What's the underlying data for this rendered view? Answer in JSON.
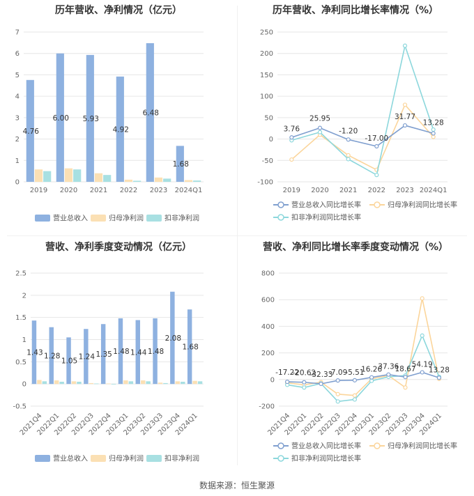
{
  "source_text": "数据来源：恒生聚源",
  "chart_data": [
    {
      "type": "bar",
      "title": "历年营收、净利情况（亿元）",
      "categories": [
        "2019",
        "2020",
        "2021",
        "2022",
        "2023",
        "2024Q1"
      ],
      "ylim": [
        0,
        7
      ],
      "yticks": [
        0,
        1,
        2,
        3,
        4,
        5,
        6,
        7
      ],
      "series": [
        {
          "name": "营业总收入",
          "color": "#8eb1e0",
          "values": [
            4.76,
            6.0,
            5.93,
            4.92,
            6.48,
            1.68
          ]
        },
        {
          "name": "归母净利润",
          "color": "#fbe0b4",
          "values": [
            0.58,
            0.63,
            0.4,
            0.1,
            0.2,
            0.08
          ]
        },
        {
          "name": "扣非净利润",
          "color": "#a8e0e2",
          "values": [
            0.5,
            0.58,
            0.32,
            0.05,
            0.15,
            0.06
          ]
        }
      ],
      "data_labels": [
        "4.76",
        "6.00",
        "5.93",
        "4.92",
        "6.48",
        "1.68"
      ],
      "legend_position": "bottom"
    },
    {
      "type": "line",
      "title": "历年营收、净利同比增长率情况（%）",
      "categories": [
        "2019",
        "2020",
        "2021",
        "2022",
        "2023",
        "2024Q1"
      ],
      "ylim": [
        -100,
        250
      ],
      "yticks": [
        -100,
        -50,
        0,
        50,
        100,
        150,
        200,
        250
      ],
      "series": [
        {
          "name": "营业总收入同比增长率",
          "color": "#7f9fcf",
          "values": [
            3.76,
            25.95,
            -1.2,
            -17.0,
            31.77,
            13.28
          ]
        },
        {
          "name": "归母净利润同比增长率",
          "color": "#fbd59b",
          "values": [
            -48,
            10,
            -38,
            -72,
            80,
            5
          ]
        },
        {
          "name": "扣非净利润同比增长率",
          "color": "#8cd7dc",
          "values": [
            -3,
            16,
            -47,
            -84,
            218,
            22
          ]
        }
      ],
      "data_labels": [
        "3.76",
        "25.95",
        "-1.20",
        "-17.00",
        "31.77",
        "13.28"
      ],
      "legend_position": "bottom"
    },
    {
      "type": "bar",
      "title": "营收、净利季度变动情况（亿元）",
      "categories": [
        "2021Q4",
        "2022Q1",
        "2022Q2",
        "2022Q3",
        "2022Q4",
        "2023Q1",
        "2023Q2",
        "2023Q3",
        "2023Q4",
        "2024Q1"
      ],
      "ylim": [
        -0.5,
        2.5
      ],
      "yticks": [
        -0.5,
        0,
        0.5,
        1,
        1.5,
        2,
        2.5
      ],
      "series": [
        {
          "name": "营业总收入",
          "color": "#8eb1e0",
          "values": [
            1.43,
            1.28,
            1.05,
            1.24,
            1.35,
            1.48,
            1.44,
            1.48,
            2.08,
            1.68
          ]
        },
        {
          "name": "归母净利润",
          "color": "#fbe0b4",
          "values": [
            0.09,
            0.08,
            0.06,
            0.02,
            0.01,
            0.08,
            0.08,
            0.03,
            0.06,
            0.07
          ]
        },
        {
          "name": "扣非净利润",
          "color": "#a8e0e2",
          "values": [
            0.06,
            0.05,
            0.05,
            0.01,
            0.0,
            0.06,
            0.06,
            0.02,
            0.05,
            0.06
          ]
        }
      ],
      "data_labels": [
        "1.43",
        "1.28",
        "1.05",
        "1.24",
        "1.35",
        "1.48",
        "1.44",
        "1.48",
        "2.08",
        "1.68"
      ],
      "legend_position": "bottom"
    },
    {
      "type": "line",
      "title": "营收、净利同比增长率季度变动情况（%）",
      "categories": [
        "2021Q4",
        "2022Q1",
        "2022Q2",
        "2022Q3",
        "2022Q4",
        "2023Q1",
        "2023Q2",
        "2023Q3",
        "2023Q4",
        "2024Q1"
      ],
      "ylim": [
        -200,
        800
      ],
      "yticks": [
        -200,
        0,
        200,
        400,
        600,
        800
      ],
      "series": [
        {
          "name": "营业总收入同比增长率",
          "color": "#7f9fcf",
          "values": [
            -17.22,
            -20.62,
            -32.33,
            -7.09,
            -5.51,
            16.26,
            37.36,
            18.67,
            54.19,
            13.28
          ]
        },
        {
          "name": "归母净利润同比增长率",
          "color": "#fbd59b",
          "values": [
            -25,
            -40,
            -20,
            -110,
            -120,
            5,
            30,
            -60,
            610,
            5
          ]
        },
        {
          "name": "扣非净利润同比增长率",
          "color": "#8cd7dc",
          "values": [
            -40,
            -60,
            -30,
            -165,
            -150,
            -10,
            20,
            30,
            330,
            20
          ]
        }
      ],
      "data_labels": [
        "-17.22",
        "-20.62",
        "-32.33",
        "-7.09",
        "-5.51",
        "16.26",
        "37.36",
        "18.67",
        "54.19",
        "13.28"
      ],
      "legend_position": "bottom"
    }
  ]
}
